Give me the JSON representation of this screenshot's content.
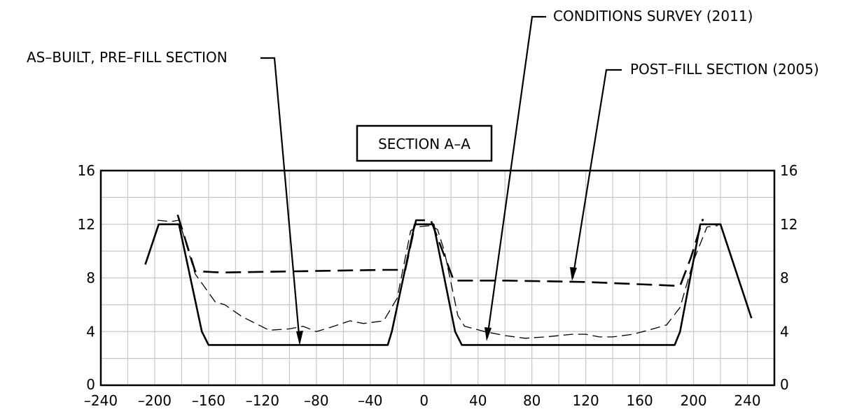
{
  "callouts": {
    "as_built": "AS–BUILT, PRE–FILL SECTION",
    "conditions": "CONDITIONS SURVEY (2011)",
    "post_fill": "POST–FILL SECTION (2005)",
    "section_title": "SECTION A–A"
  },
  "chart_data": {
    "type": "line",
    "title": "SECTION A–A",
    "xlim": [
      -240,
      260
    ],
    "ylim": [
      0,
      16
    ],
    "x_ticks": [
      -240,
      -200,
      -160,
      -120,
      -80,
      -40,
      0,
      40,
      80,
      120,
      160,
      200,
      240
    ],
    "y_ticks": [
      0,
      4,
      8,
      12,
      16
    ],
    "x_tick_labels": [
      "–240",
      "–200",
      "–160",
      "–120",
      "–80",
      "–40",
      "0",
      "40",
      "80",
      "120",
      "160",
      "200",
      "240"
    ],
    "y_tick_labels": [
      "0",
      "4",
      "8",
      "12",
      "16"
    ],
    "grid": true,
    "series": [
      {
        "id": "as_built",
        "style": "solid",
        "points": [
          [
            -207,
            9
          ],
          [
            -197,
            12
          ],
          [
            -182,
            12
          ],
          [
            -165,
            4
          ],
          [
            -160,
            3
          ],
          [
            -27,
            3
          ],
          [
            -24,
            4
          ],
          [
            -7,
            12
          ],
          [
            7,
            12
          ],
          [
            23,
            4
          ],
          [
            28,
            3
          ],
          [
            186,
            3
          ],
          [
            190,
            4
          ],
          [
            205,
            12
          ],
          [
            220,
            12
          ],
          [
            243,
            5
          ]
        ]
      },
      {
        "id": "conditions_2011",
        "style": "thin-dash",
        "points": [
          [
            -198,
            12.3
          ],
          [
            -188,
            12.2
          ],
          [
            -182,
            12.3
          ],
          [
            -170,
            8.3
          ],
          [
            -155,
            6.2
          ],
          [
            -148,
            6
          ],
          [
            -135,
            5.1
          ],
          [
            -115,
            4.1
          ],
          [
            -100,
            4.2
          ],
          [
            -90,
            4.4
          ],
          [
            -80,
            4
          ],
          [
            -70,
            4.3
          ],
          [
            -55,
            4.8
          ],
          [
            -45,
            4.6
          ],
          [
            -30,
            4.8
          ],
          [
            -20,
            6.5
          ],
          [
            -10,
            11.5
          ],
          [
            -6,
            11.8
          ],
          [
            5,
            11.9
          ],
          [
            10,
            11.6
          ],
          [
            15,
            10
          ],
          [
            25,
            5.2
          ],
          [
            30,
            4.4
          ],
          [
            45,
            4
          ],
          [
            60,
            3.7
          ],
          [
            75,
            3.5
          ],
          [
            90,
            3.6
          ],
          [
            100,
            3.7
          ],
          [
            110,
            3.8
          ],
          [
            120,
            3.8
          ],
          [
            130,
            3.6
          ],
          [
            140,
            3.6
          ],
          [
            155,
            3.8
          ],
          [
            170,
            4.2
          ],
          [
            180,
            4.5
          ],
          [
            190,
            5.8
          ],
          [
            200,
            9.3
          ],
          [
            210,
            11.8
          ],
          [
            218,
            11.9
          ]
        ]
      },
      {
        "id": "post_fill_2005",
        "style": "dash",
        "points": [
          [
            -183,
            12.7
          ],
          [
            -170,
            8.5
          ],
          [
            -150,
            8.4
          ],
          [
            -30,
            8.6
          ],
          [
            -14,
            8.6
          ],
          [
            -6,
            12.3
          ],
          [
            5,
            12.3
          ],
          [
            22,
            7.8
          ],
          [
            60,
            7.8
          ],
          [
            120,
            7.7
          ],
          [
            190,
            7.4
          ],
          [
            198,
            9.5
          ],
          [
            207,
            12.4
          ]
        ]
      }
    ]
  }
}
